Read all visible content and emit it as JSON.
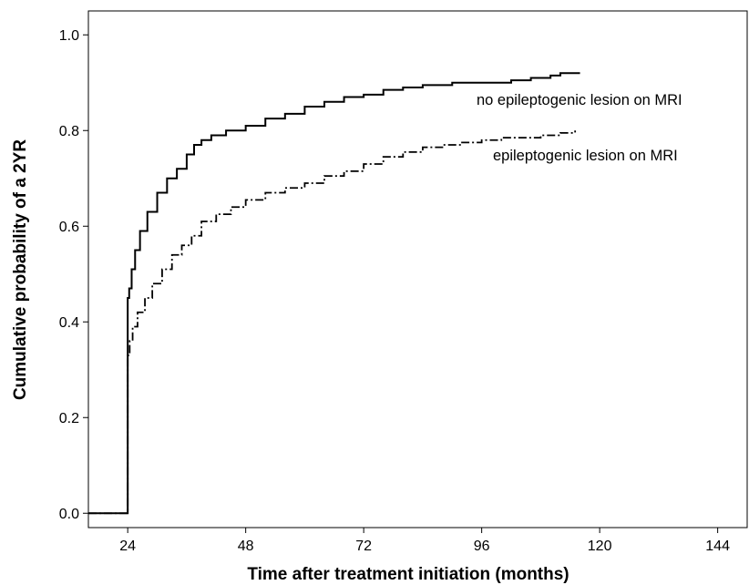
{
  "chart_data": {
    "type": "line",
    "title": "",
    "xlabel": "Time after treatment initiation (months)",
    "ylabel": "Cumulative probability of a 2YR",
    "xlim": [
      16,
      150
    ],
    "ylim": [
      -0.03,
      1.05
    ],
    "x_ticks": [
      24,
      48,
      72,
      96,
      120,
      144
    ],
    "y_ticks": [
      0.0,
      0.2,
      0.4,
      0.6,
      0.8,
      1.0
    ],
    "x_tick_labels": [
      "24",
      "48",
      "72",
      "96",
      "120",
      "144"
    ],
    "y_tick_labels": [
      "0.0",
      "0.2",
      "0.4",
      "0.6",
      "0.8",
      "1.0"
    ],
    "grid": false,
    "series": [
      {
        "name": "no epileptogenic lesion on MRI",
        "line_style": "solid",
        "color": "#000000",
        "x": [
          16,
          24,
          24,
          24.3,
          24.8,
          25.5,
          26.5,
          28,
          30,
          32,
          34,
          36,
          37.5,
          39,
          41,
          44,
          48,
          52,
          56,
          60,
          64,
          68,
          72,
          76,
          80,
          84,
          90,
          96,
          102,
          106,
          108,
          110,
          112,
          116
        ],
        "y": [
          0,
          0,
          0.45,
          0.47,
          0.51,
          0.55,
          0.59,
          0.63,
          0.67,
          0.7,
          0.72,
          0.75,
          0.77,
          0.78,
          0.79,
          0.8,
          0.81,
          0.825,
          0.835,
          0.85,
          0.86,
          0.87,
          0.875,
          0.885,
          0.89,
          0.895,
          0.9,
          0.9,
          0.905,
          0.91,
          0.91,
          0.915,
          0.92,
          0.92
        ]
      },
      {
        "name": "epileptogenic lesion on MRI",
        "line_style": "dash-dot",
        "color": "#000000",
        "x": [
          16,
          24,
          24,
          24.4,
          25,
          26,
          27.5,
          29,
          31,
          33,
          35,
          37,
          39,
          42,
          45,
          48,
          52,
          56,
          60,
          64,
          68,
          72,
          76,
          80,
          84,
          88,
          92,
          96,
          100,
          104,
          108,
          112,
          115
        ],
        "y": [
          0,
          0,
          0.33,
          0.36,
          0.39,
          0.42,
          0.45,
          0.48,
          0.51,
          0.54,
          0.56,
          0.58,
          0.61,
          0.625,
          0.64,
          0.655,
          0.67,
          0.68,
          0.69,
          0.705,
          0.715,
          0.73,
          0.745,
          0.755,
          0.765,
          0.77,
          0.775,
          0.78,
          0.785,
          0.785,
          0.79,
          0.795,
          0.8
        ]
      }
    ]
  }
}
